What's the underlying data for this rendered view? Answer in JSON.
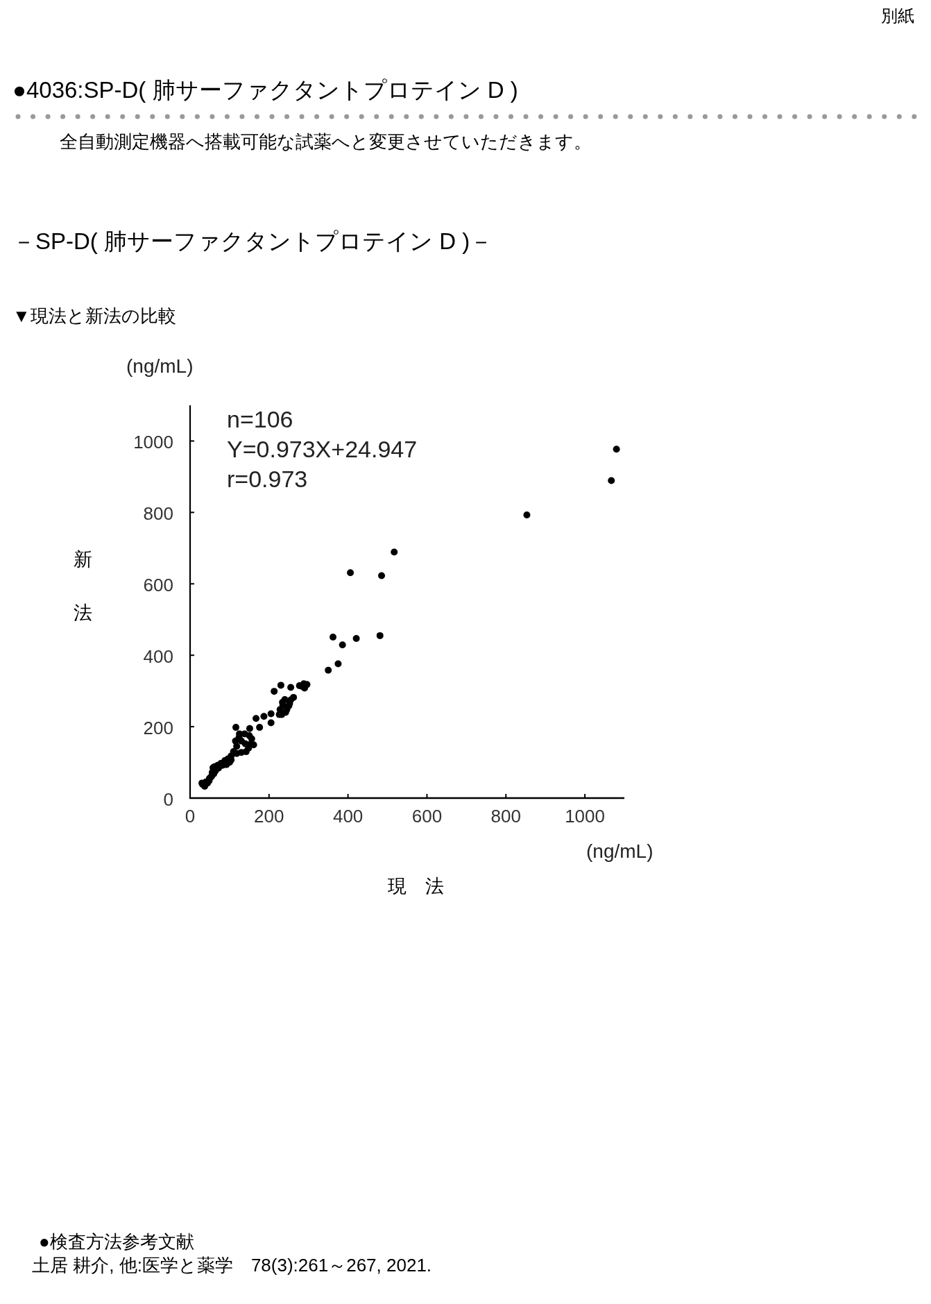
{
  "chart_data": {
    "type": "scatter",
    "title": "－SP-D( 肺サーファクタントプロテイン D )－",
    "subtitle": "▼現法と新法の比較",
    "xlabel": "現　法",
    "ylabel": "新法",
    "annotations": [
      "別紙",
      "●4036:SP-D( 肺サーファクタントプロテイン D )",
      "全自動測定機器へ搭載可能な試薬へと変更させていただきます。",
      "n=106",
      "Y=0.973X+24.947",
      "r=0.973",
      "(ng/mL)",
      "(ng/mL)",
      "●検査方法参考文献",
      "土居 耕介, 他:医学と薬学　78(3):261～267, 2021."
    ],
    "x": [
      1080,
      1067,
      853,
      517,
      406,
      485,
      362,
      386,
      421,
      481,
      375,
      350,
      288,
      290,
      296,
      285,
      277,
      255,
      230,
      213,
      262,
      255,
      245,
      235,
      250,
      242,
      232,
      226,
      205,
      205,
      187,
      167,
      176,
      151,
      116,
      161,
      156,
      150,
      138,
      118,
      142,
      148,
      130,
      115,
      125,
      104,
      92,
      100,
      78,
      70,
      62,
      58,
      88,
      96,
      60,
      55,
      49,
      40,
      32,
      37,
      30,
      48,
      52,
      110,
      118,
      124,
      152,
      104,
      72,
      82,
      44,
      56,
      64,
      234,
      240,
      228,
      252,
      130,
      140
    ],
    "values": [
      977,
      889,
      793,
      689,
      631,
      623,
      451,
      429,
      447,
      455,
      376,
      358,
      320,
      308,
      318,
      312,
      315,
      310,
      316,
      299,
      282,
      275,
      248,
      260,
      258,
      240,
      234,
      234,
      236,
      211,
      229,
      223,
      198,
      195,
      198,
      149,
      166,
      175,
      180,
      125,
      130,
      140,
      128,
      160,
      180,
      107,
      94,
      100,
      97,
      92,
      88,
      85,
      105,
      110,
      68,
      62,
      55,
      45,
      38,
      33,
      42,
      48,
      58,
      130,
      145,
      170,
      150,
      118,
      84,
      92,
      42,
      72,
      76,
      268,
      276,
      248,
      265,
      160,
      152
    ],
    "color": "#000000",
    "marker": "circle",
    "xlim": [
      0,
      1100
    ],
    "ylim": [
      0,
      1100
    ],
    "xticks": [
      0,
      200,
      400,
      600,
      800,
      1000
    ],
    "yticks": [
      0,
      200,
      400,
      600,
      800,
      1000
    ]
  }
}
